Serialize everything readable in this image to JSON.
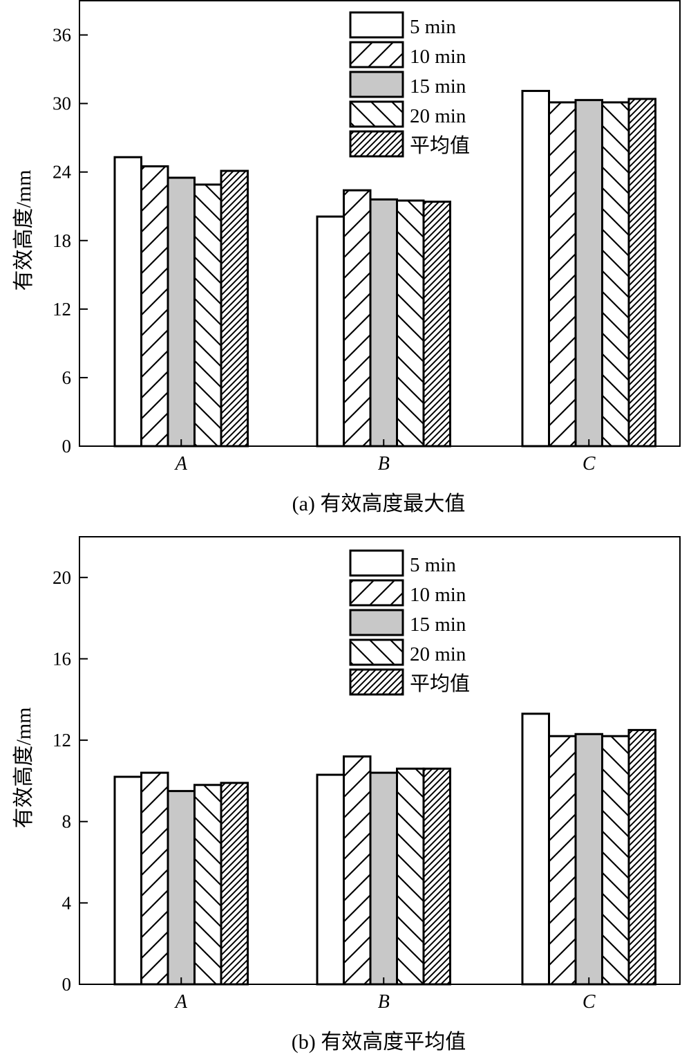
{
  "patterns": [
    {
      "id": "blank",
      "fill": "#ffffff",
      "hatch": "none"
    },
    {
      "id": "fwd",
      "fill": "#ffffff",
      "hatch": "forward-diagonal"
    },
    {
      "id": "gray",
      "fill": "#c8c8c8",
      "hatch": "none"
    },
    {
      "id": "back",
      "fill": "#ffffff",
      "hatch": "backward-diagonal"
    },
    {
      "id": "dense",
      "fill": "#ffffff",
      "hatch": "dense-forward-diagonal"
    }
  ],
  "chart_data": [
    {
      "type": "bar",
      "caption": "(a) 有效高度最大值",
      "ylabel": "有效高度/mm",
      "ylim": [
        0,
        39
      ],
      "yticks": [
        0,
        6,
        12,
        18,
        24,
        30,
        36
      ],
      "categories": [
        "A",
        "B",
        "C"
      ],
      "legend_position": "top-center",
      "series": [
        {
          "name": "5 min",
          "pattern": "blank",
          "values": [
            25.3,
            20.1,
            31.1
          ]
        },
        {
          "name": "10 min",
          "pattern": "fwd",
          "values": [
            24.5,
            22.4,
            30.1
          ]
        },
        {
          "name": "15 min",
          "pattern": "gray",
          "values": [
            23.5,
            21.6,
            30.3
          ]
        },
        {
          "name": "20 min",
          "pattern": "back",
          "values": [
            22.9,
            21.5,
            30.1
          ]
        },
        {
          "name": "平均值",
          "pattern": "dense",
          "values": [
            24.1,
            21.4,
            30.4
          ]
        }
      ]
    },
    {
      "type": "bar",
      "caption": "(b) 有效高度平均值",
      "ylabel": "有效高度/mm",
      "ylim": [
        0,
        22
      ],
      "yticks": [
        0,
        4,
        8,
        12,
        16,
        20
      ],
      "categories": [
        "A",
        "B",
        "C"
      ],
      "legend_position": "top-center",
      "series": [
        {
          "name": "5 min",
          "pattern": "blank",
          "values": [
            10.2,
            10.3,
            13.3
          ]
        },
        {
          "name": "10 min",
          "pattern": "fwd",
          "values": [
            10.4,
            11.2,
            12.2
          ]
        },
        {
          "name": "15 min",
          "pattern": "gray",
          "values": [
            9.5,
            10.4,
            12.3
          ]
        },
        {
          "name": "20 min",
          "pattern": "back",
          "values": [
            9.8,
            10.6,
            12.2
          ]
        },
        {
          "name": "平均值",
          "pattern": "dense",
          "values": [
            9.9,
            10.6,
            12.5
          ]
        }
      ]
    }
  ]
}
